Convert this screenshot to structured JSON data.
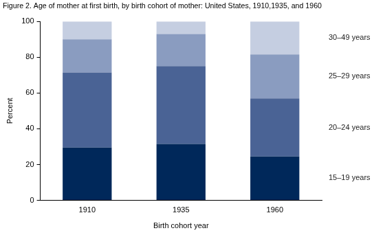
{
  "chart_data": {
    "type": "bar",
    "title": "Figure 2. Age of mother at first birth, by birth cohort of mother: United States, 1910,1935, and 1960",
    "x_label": "Birth cohort year",
    "y_label": "Percent",
    "categories": [
      "1910",
      "1935",
      "1960"
    ],
    "series": [
      {
        "name": "15–19 years",
        "color": "#00285a",
        "values": [
          29.5,
          31.5,
          24.5
        ]
      },
      {
        "name": "20–24 years",
        "color": "#4a6395",
        "values": [
          42,
          43.5,
          32.5
        ]
      },
      {
        "name": "25–29 years",
        "color": "#8a9cc0",
        "values": [
          18.5,
          18,
          24.5
        ]
      },
      {
        "name": "30–49 years",
        "color": "#c5cee1",
        "values": [
          10,
          7,
          18.5
        ]
      }
    ],
    "stacked": true,
    "ylim": [
      0,
      100
    ],
    "yticks": [
      0,
      20,
      40,
      60,
      80,
      100
    ],
    "grid": false,
    "legend": "right"
  }
}
